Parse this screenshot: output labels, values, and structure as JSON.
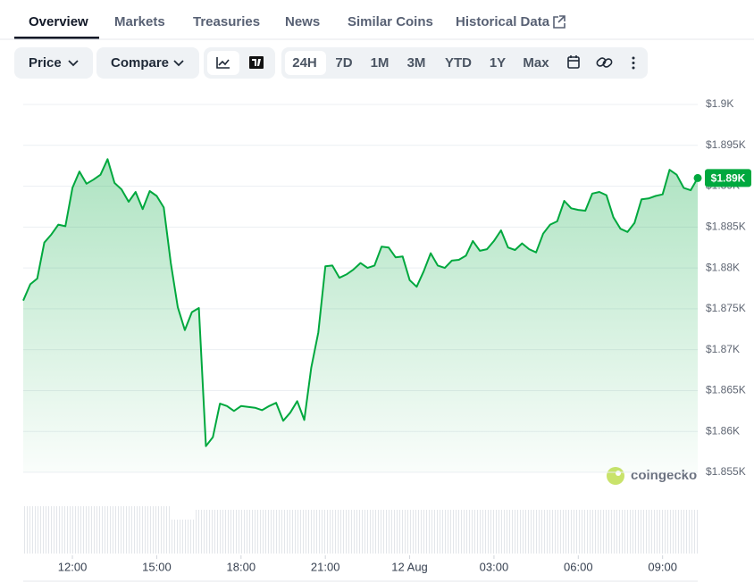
{
  "tabs": [
    "Overview",
    "Markets",
    "Treasuries",
    "News",
    "Similar Coins",
    "Historical Data"
  ],
  "toolbar": {
    "price": "Price",
    "compare": "Compare",
    "ranges": [
      "24H",
      "7D",
      "1M",
      "3M",
      "YTD",
      "1Y",
      "Max"
    ]
  },
  "watermark": "coingecko",
  "chart_data": {
    "type": "line",
    "x": [
      10.25,
      10.5,
      10.75,
      11,
      11.25,
      11.5,
      11.75,
      12,
      12.25,
      12.5,
      12.75,
      13,
      13.25,
      13.5,
      13.75,
      14,
      14.25,
      14.5,
      14.75,
      15,
      15.25,
      15.5,
      15.75,
      16,
      16.25,
      16.5,
      16.75,
      17,
      17.25,
      17.5,
      17.75,
      18,
      18.25,
      18.5,
      18.75,
      19,
      19.25,
      19.5,
      19.75,
      20,
      20.25,
      20.5,
      20.75,
      21,
      21.25,
      21.5,
      21.75,
      22,
      22.25,
      22.5,
      22.75,
      23,
      23.25,
      23.5,
      23.75,
      24,
      24.25,
      24.5,
      24.75,
      25,
      25.25,
      25.5,
      25.75,
      26,
      26.25,
      26.5,
      26.75,
      27,
      27.25,
      27.5,
      27.75,
      28,
      28.25,
      28.5,
      28.75,
      29,
      29.25,
      29.5,
      29.75,
      30,
      30.25,
      30.5,
      30.75,
      31,
      31.25,
      31.5,
      31.75,
      32,
      32.25,
      32.5,
      32.75,
      33,
      33.25,
      33.5,
      33.75,
      34,
      34.25
    ],
    "series": [
      {
        "name": "Price",
        "color": "#00a83e",
        "values": [
          1876.0,
          1878.0,
          1878.7,
          1883.1,
          1884.1,
          1885.3,
          1885.1,
          1889.8,
          1891.8,
          1890.3,
          1890.8,
          1891.4,
          1893.3,
          1890.4,
          1889.6,
          1888.1,
          1889.3,
          1887.2,
          1889.4,
          1888.8,
          1887.4,
          1880.6,
          1875.2,
          1872.4,
          1874.6,
          1875.1,
          1858.2,
          1859.3,
          1863.4,
          1863.1,
          1862.5,
          1863.1,
          1863.0,
          1862.9,
          1862.6,
          1863.1,
          1863.5,
          1861.3,
          1862.3,
          1863.7,
          1861.4,
          1867.8,
          1872.1,
          1880.2,
          1880.3,
          1878.8,
          1879.2,
          1879.8,
          1880.6,
          1880.0,
          1880.3,
          1882.6,
          1882.5,
          1881.3,
          1881.4,
          1878.5,
          1877.7,
          1879.6,
          1881.8,
          1880.3,
          1880.0,
          1880.9,
          1881.0,
          1881.5,
          1883.3,
          1882.1,
          1882.3,
          1883.3,
          1884.6,
          1882.5,
          1882.2,
          1883.0,
          1882.3,
          1881.9,
          1884.2,
          1885.3,
          1885.7,
          1888.2,
          1887.3,
          1887.1,
          1887.0,
          1889.1,
          1889.3,
          1888.9,
          1886.2,
          1884.8,
          1884.4,
          1885.5,
          1888.4,
          1888.5,
          1888.8,
          1889.0,
          1892.0,
          1891.4,
          1889.8,
          1889.5,
          1891.0
        ]
      }
    ],
    "last_price_label": "$1.89K",
    "xlim": [
      10.25,
      34.25
    ],
    "xticks": [
      {
        "value": 12,
        "label": "12:00"
      },
      {
        "value": 15,
        "label": "15:00"
      },
      {
        "value": 18,
        "label": "18:00"
      },
      {
        "value": 21,
        "label": "21:00"
      },
      {
        "value": 24,
        "label": "12 Aug"
      },
      {
        "value": 27,
        "label": "03:00"
      },
      {
        "value": 30,
        "label": "06:00"
      },
      {
        "value": 33,
        "label": "09:00"
      }
    ],
    "ylim": [
      1855,
      1900
    ],
    "yticks": [
      {
        "value": 1855,
        "label": "$1.855K"
      },
      {
        "value": 1860,
        "label": "$1.86K"
      },
      {
        "value": 1865,
        "label": "$1.865K"
      },
      {
        "value": 1870,
        "label": "$1.87K"
      },
      {
        "value": 1875,
        "label": "$1.875K"
      },
      {
        "value": 1880,
        "label": "$1.88K"
      },
      {
        "value": 1885,
        "label": "$1.885K"
      },
      {
        "value": 1890,
        "label": "$1.89K"
      },
      {
        "value": 1895,
        "label": "$1.895K"
      },
      {
        "value": 1900,
        "label": "$1.9K"
      }
    ],
    "grid": true
  }
}
